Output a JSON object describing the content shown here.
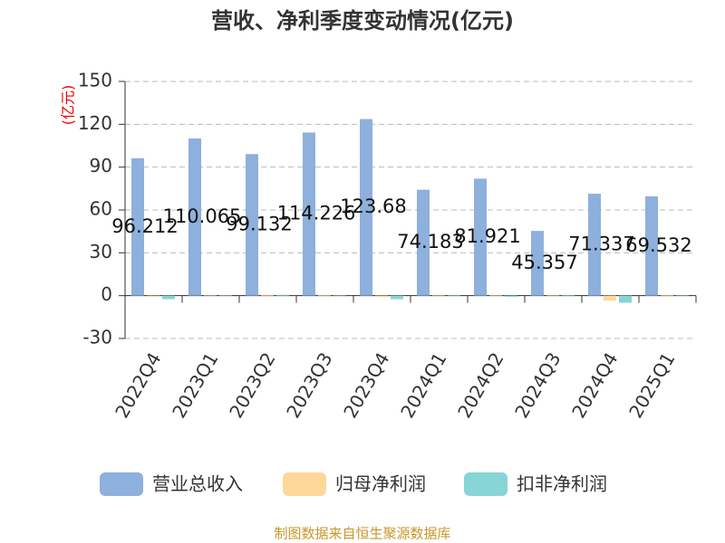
{
  "chart_data": {
    "type": "bar",
    "title": "营收、净利季度变动情况(亿元)",
    "y_label": "(亿元)",
    "categories": [
      "2022Q4",
      "2023Q1",
      "2023Q2",
      "2023Q3",
      "2023Q4",
      "2024Q1",
      "2024Q2",
      "2024Q3",
      "2024Q4",
      "2025Q1"
    ],
    "series": [
      {
        "name": "营业总收入",
        "color": "#8eb0dc",
        "values": [
          96.212,
          110.065,
          99.132,
          114.226,
          123.68,
          74.183,
          81.921,
          45.357,
          71.337,
          69.532
        ],
        "show_labels": true
      },
      {
        "name": "归母净利润",
        "color": "#fdd898",
        "values": [
          -0.8,
          0.3,
          0.5,
          0.4,
          -1,
          0.3,
          0.2,
          0.3,
          -3.5,
          0.4
        ],
        "show_labels": false
      },
      {
        "name": "扣非净利润",
        "color": "#87d5d6",
        "values": [
          -2.5,
          0.2,
          0.5,
          0.3,
          -2.5,
          0.2,
          -0.8,
          0.1,
          -5,
          0.3
        ],
        "show_labels": false
      }
    ],
    "ylim": [
      -30,
      150
    ],
    "yticks": [
      -30,
      0,
      30,
      60,
      90,
      120,
      150
    ],
    "grid": true,
    "source": "制图数据来自恒生聚源数据库"
  }
}
